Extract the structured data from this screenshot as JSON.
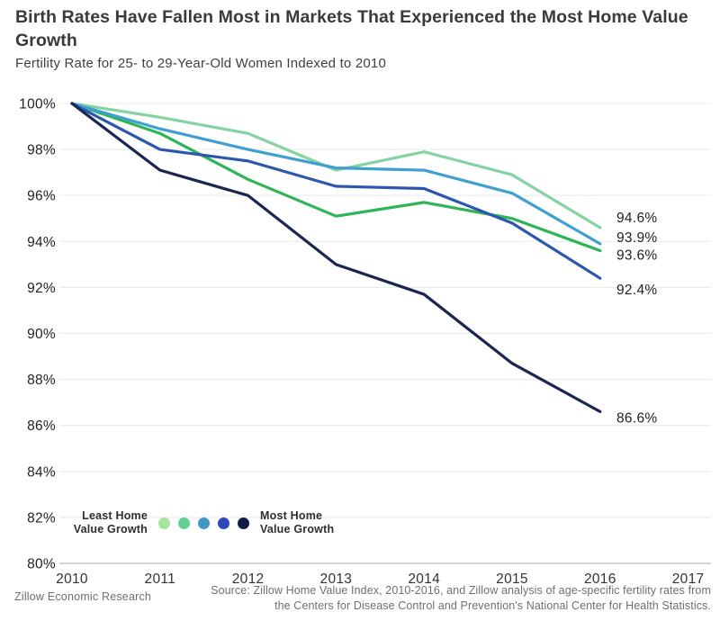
{
  "header": {
    "title": "Birth Rates Have Fallen Most in Markets That Experienced the Most Home Value Growth",
    "subtitle": "Fertility Rate for 25- to 29-Year-Old Women Indexed to 2010"
  },
  "chart_data": {
    "type": "line",
    "title": "Birth Rates Have Fallen Most in Markets That Experienced the Most Home Value Growth",
    "subtitle": "Fertility Rate for 25- to 29-Year-Old Women Indexed to 2010",
    "x": [
      2010,
      2011,
      2012,
      2013,
      2014,
      2015,
      2016
    ],
    "x_axis_tick_labels": [
      "2010",
      "2011",
      "2012",
      "2013",
      "2014",
      "2015",
      "2016",
      "2017"
    ],
    "xlim": [
      2010,
      2017
    ],
    "ylim": [
      80,
      100
    ],
    "y_tick_step": 2,
    "y_tick_labels": [
      "100%",
      "98%",
      "96%",
      "94%",
      "92%",
      "90%",
      "88%",
      "86%",
      "84%",
      "82%",
      "80%"
    ],
    "grid": true,
    "legend_position": "bottom-left",
    "series": [
      {
        "name": "quintile-1-least-home-value-growth",
        "color": "#85d3a3",
        "values": [
          100,
          99.4,
          98.7,
          97.1,
          97.9,
          96.9,
          94.6
        ],
        "end_label": "94.6%"
      },
      {
        "name": "quintile-2",
        "color": "#2fb457",
        "values": [
          100,
          98.7,
          96.7,
          95.1,
          95.7,
          95.0,
          93.6
        ],
        "end_label": "93.6%"
      },
      {
        "name": "quintile-3",
        "color": "#3f9fd1",
        "values": [
          100,
          98.9,
          98.0,
          97.2,
          97.1,
          96.1,
          93.9
        ],
        "end_label": "93.9%"
      },
      {
        "name": "quintile-4",
        "color": "#2d56ae",
        "values": [
          100,
          98.0,
          97.5,
          96.4,
          96.3,
          94.8,
          92.4
        ],
        "end_label": "92.4%"
      },
      {
        "name": "quintile-5-most-home-value-growth",
        "color": "#1b2750",
        "values": [
          100,
          97.1,
          96.0,
          93.0,
          91.7,
          88.7,
          86.6
        ],
        "end_label": "86.6%"
      }
    ]
  },
  "legend": {
    "left_label": "Least Home Value Growth",
    "right_label": "Most Home Value Growth",
    "dot_colors": [
      "#a5e59b",
      "#63cf97",
      "#4297c4",
      "#2b49bd",
      "#101b45"
    ]
  },
  "footer": {
    "left": "Zillow Economic Research",
    "source": "Source: Zillow Home Value Index, 2010-2016, and Zillow analysis of age-specific fertility rates from the Centers for Disease Control and Prevention's National Center for Health Statistics."
  }
}
